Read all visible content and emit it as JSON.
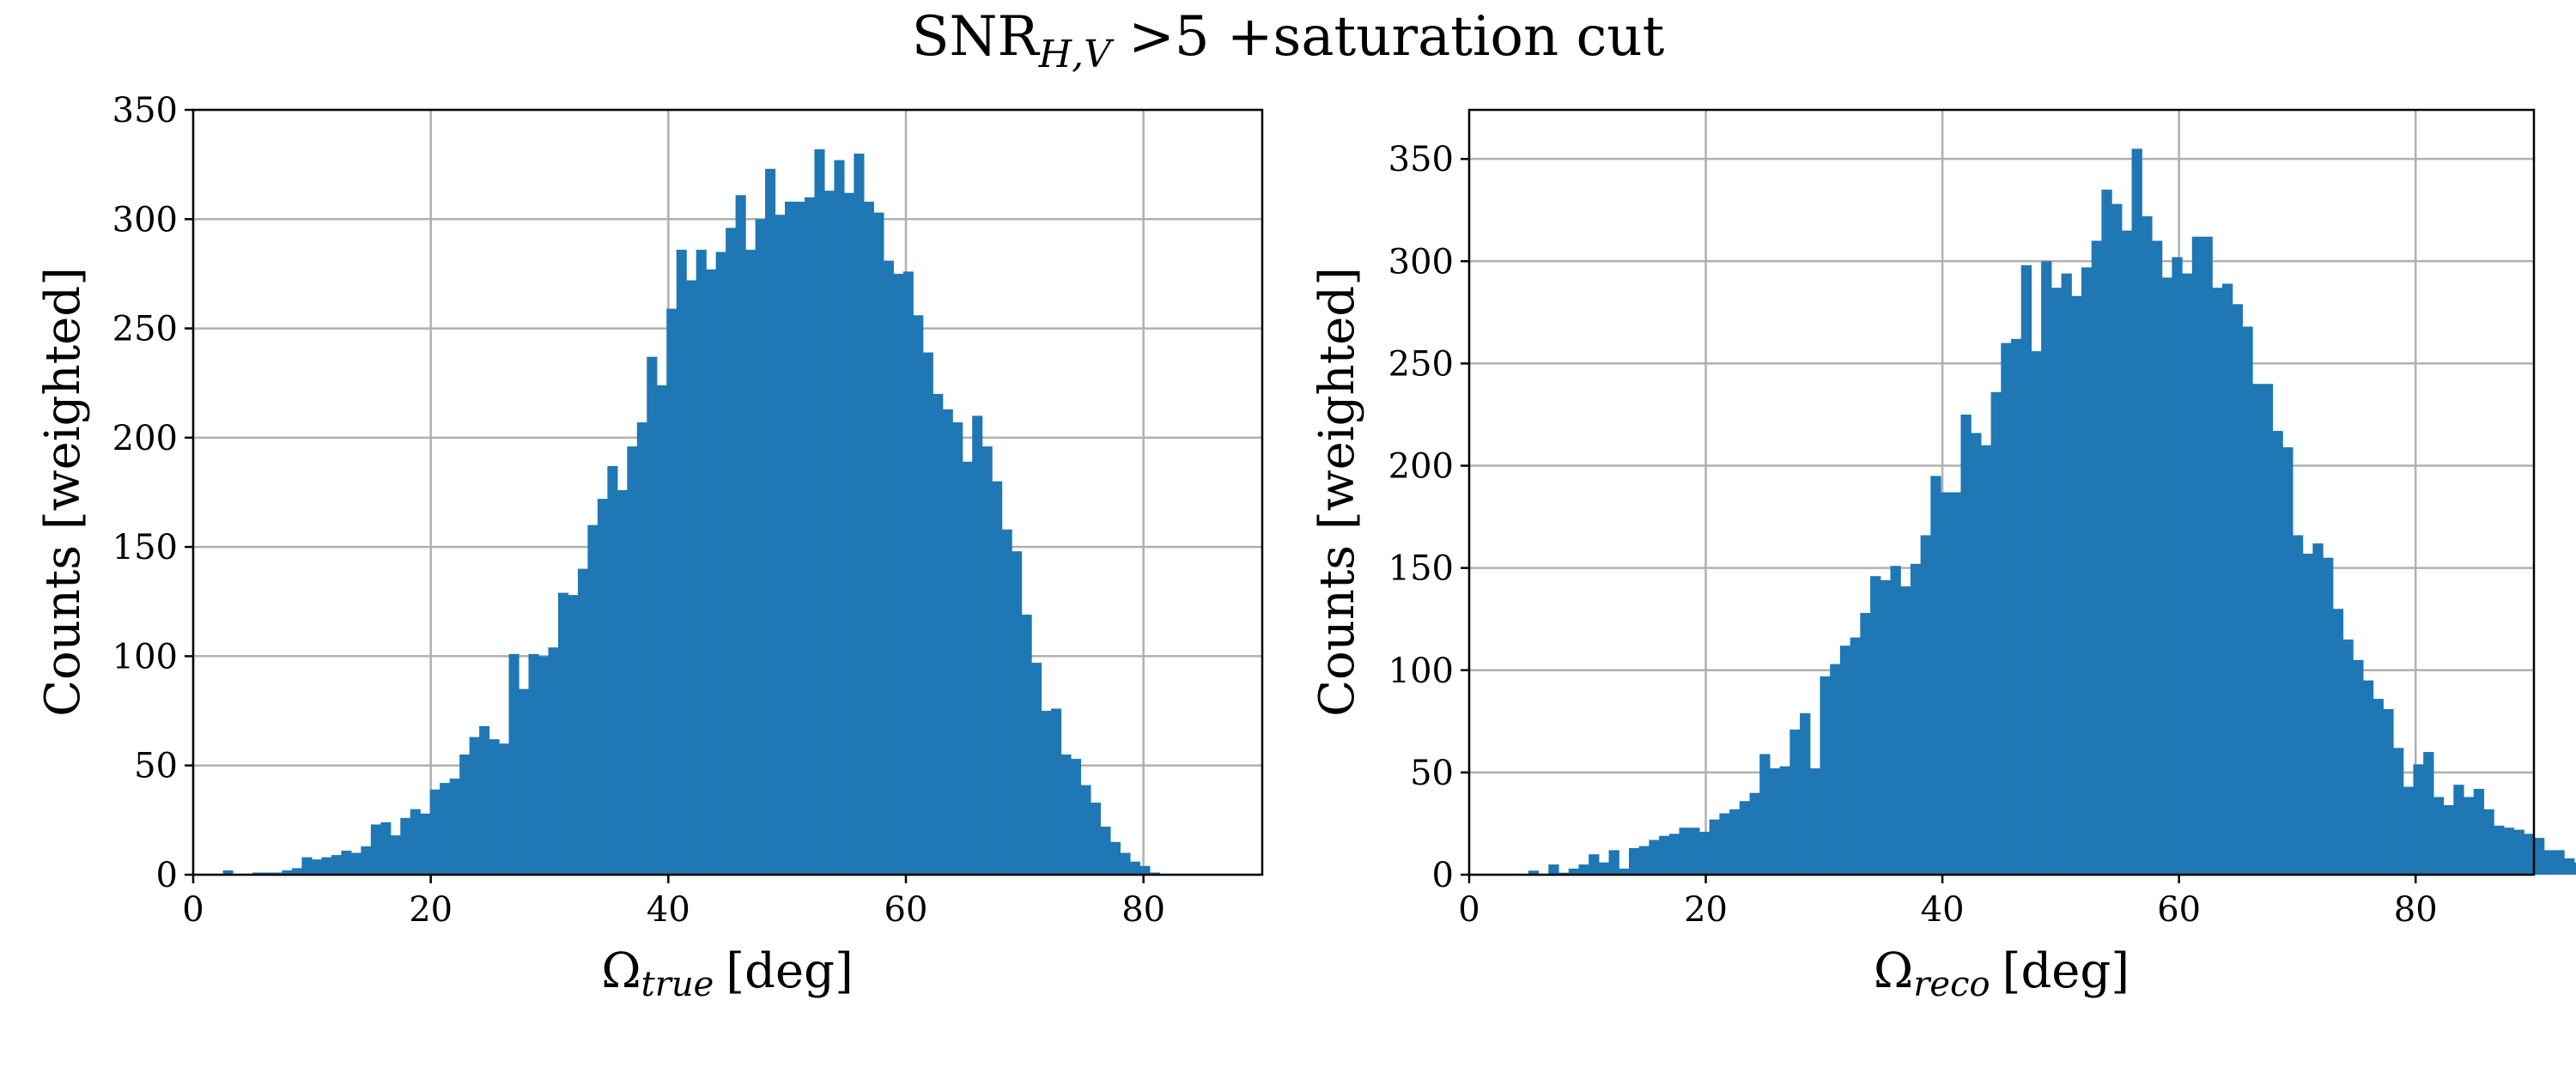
{
  "figure": {
    "title_main": "SNR",
    "title_sub": "H,V",
    "title_rest": " >5 +saturation cut"
  },
  "chart_data": [
    {
      "type": "bar",
      "histogram": true,
      "ylabel": "Counts [weighted]",
      "xlabel_symbol": "Ω",
      "xlabel_sub": "true",
      "xlabel_unit": "[deg]",
      "xlim": [
        0,
        90
      ],
      "ylim": [
        0,
        350
      ],
      "xticks": [
        0,
        20,
        40,
        60,
        80
      ],
      "yticks": [
        0,
        50,
        100,
        150,
        200,
        250,
        300,
        350
      ],
      "grid": true,
      "color": "#1f77b4",
      "bin_edges_start": 2.5,
      "bin_width": 0.83,
      "values": [
        2,
        0,
        0,
        1,
        1,
        1,
        2,
        3,
        8,
        7,
        8,
        9,
        11,
        10,
        13,
        23,
        24,
        18,
        26,
        30,
        28,
        39,
        42,
        44,
        55,
        63,
        68,
        62,
        60,
        101,
        85,
        101,
        100,
        104,
        129,
        128,
        140,
        160,
        172,
        187,
        176,
        196,
        207,
        237,
        224,
        259,
        286,
        272,
        286,
        277,
        285,
        296,
        311,
        286,
        300,
        323,
        302,
        308,
        308,
        310,
        332,
        313,
        327,
        312,
        330,
        308,
        303,
        281,
        275,
        276,
        256,
        239,
        220,
        213,
        207,
        189,
        210,
        196,
        180,
        158,
        148,
        119,
        97,
        75,
        76,
        55,
        53,
        41,
        33,
        22,
        15,
        10,
        6,
        4,
        1
      ]
    },
    {
      "type": "bar",
      "histogram": true,
      "ylabel": "Counts [weighted]",
      "xlabel_symbol": "Ω",
      "xlabel_sub": "reco",
      "xlabel_unit": "[deg]",
      "xlim": [
        0,
        90
      ],
      "ylim": [
        0,
        374
      ],
      "xticks": [
        0,
        20,
        40,
        60,
        80
      ],
      "yticks": [
        0,
        50,
        100,
        150,
        200,
        250,
        300,
        350
      ],
      "grid": true,
      "color": "#1f77b4",
      "bin_edges_start": 5,
      "bin_width": 0.85,
      "values": [
        2,
        0,
        5,
        1,
        3,
        5,
        10,
        6,
        12,
        3,
        13,
        14,
        17,
        19,
        20,
        23,
        23,
        21,
        27,
        30,
        32,
        36,
        40,
        59,
        52,
        53,
        71,
        79,
        52,
        97,
        103,
        112,
        116,
        128,
        146,
        144,
        151,
        141,
        152,
        166,
        195,
        187,
        187,
        225,
        216,
        210,
        236,
        260,
        262,
        298,
        256,
        300,
        287,
        294,
        283,
        297,
        310,
        335,
        328,
        315,
        355,
        322,
        310,
        292,
        302,
        294,
        312,
        312,
        287,
        289,
        279,
        268,
        240,
        240,
        217,
        209,
        166,
        157,
        162,
        155,
        130,
        115,
        105,
        95,
        86,
        81,
        62,
        43,
        54,
        60,
        38,
        34,
        44,
        38,
        42,
        32,
        24,
        23,
        22,
        20,
        18,
        12,
        12,
        8,
        6,
        5
      ]
    }
  ]
}
